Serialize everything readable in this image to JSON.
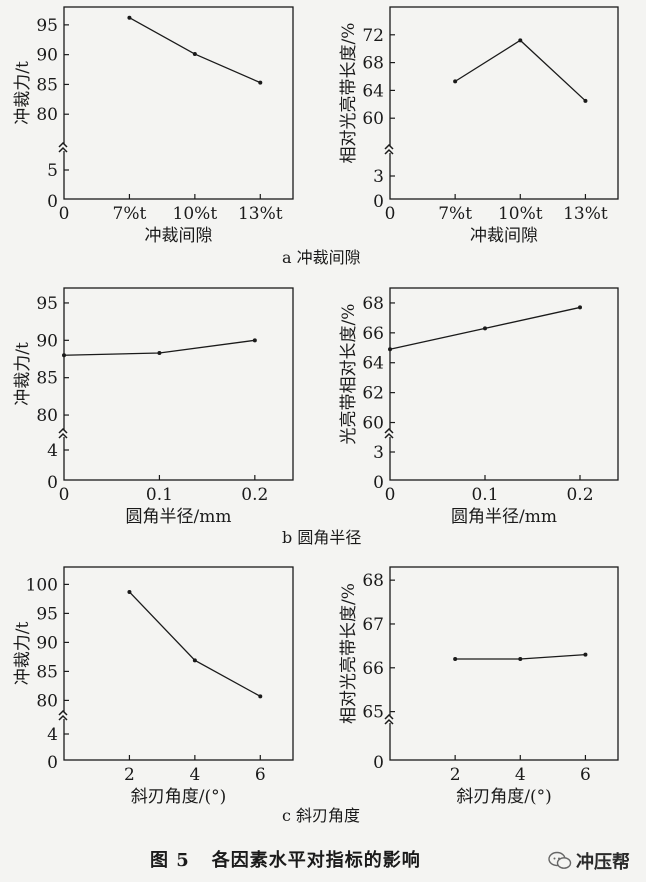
{
  "chart_data": [
    {
      "id": "a-force",
      "type": "line",
      "xlabel": "冲裁间隙",
      "ylabel": "冲裁力/t",
      "x_origin": "0",
      "xticks": [
        "7%t",
        "10%t",
        "13%t"
      ],
      "x": [
        1,
        2,
        3
      ],
      "xlim": [
        0,
        3.5
      ],
      "ylim": [
        75,
        98
      ],
      "yticks_upper": [
        80,
        85,
        90,
        95
      ],
      "yticks_lower": [
        5
      ],
      "y_origin": "0",
      "axis_break": true,
      "series": [
        {
          "values": [
            96.2,
            90.1,
            85.3
          ]
        }
      ]
    },
    {
      "id": "a-length",
      "type": "line",
      "xlabel": "冲裁间隙",
      "ylabel": "相对光亮带长度/%",
      "x_origin": "0",
      "xticks": [
        "7%t",
        "10%t",
        "13%t"
      ],
      "x": [
        1,
        2,
        3
      ],
      "xlim": [
        0,
        3.5
      ],
      "ylim": [
        56,
        76
      ],
      "yticks_upper": [
        60,
        64,
        68,
        72
      ],
      "yticks_lower": [
        3
      ],
      "y_origin": "0",
      "axis_break": true,
      "series": [
        {
          "values": [
            65.3,
            71.2,
            62.5
          ]
        }
      ]
    },
    {
      "id": "b-force",
      "type": "line",
      "xlabel": "圆角半径/mm",
      "ylabel": "冲裁力/t",
      "x_origin": "0",
      "xticks": [
        "0.1",
        "0.2"
      ],
      "x": [
        0,
        0.1,
        0.2
      ],
      "xlim": [
        0,
        0.24
      ],
      "ylim": [
        78,
        97
      ],
      "yticks_upper": [
        80,
        85,
        90,
        95
      ],
      "yticks_lower": [
        4
      ],
      "y_origin": "0",
      "axis_break": true,
      "series": [
        {
          "values": [
            88.0,
            88.3,
            90.0
          ]
        }
      ]
    },
    {
      "id": "b-length",
      "type": "line",
      "xlabel": "圆角半径/mm",
      "ylabel": "光亮带相对长度/%",
      "x_origin": "0",
      "xticks": [
        "0.1",
        "0.2"
      ],
      "x": [
        0,
        0.1,
        0.2
      ],
      "xlim": [
        0,
        0.24
      ],
      "ylim": [
        59.5,
        69
      ],
      "yticks_upper": [
        60,
        62,
        64,
        66,
        68
      ],
      "yticks_lower": [
        3
      ],
      "y_origin": "0",
      "axis_break": true,
      "series": [
        {
          "values": [
            64.9,
            66.3,
            67.7
          ]
        }
      ]
    },
    {
      "id": "c-force",
      "type": "line",
      "xlabel": "斜刃角度/(°)",
      "ylabel": "冲裁力/t",
      "x_origin": "",
      "xticks": [
        "2",
        "4",
        "6"
      ],
      "x": [
        2,
        4,
        6
      ],
      "xlim": [
        0,
        7
      ],
      "ylim": [
        78,
        103
      ],
      "yticks_upper": [
        80,
        85,
        90,
        95,
        100
      ],
      "yticks_lower": [
        4
      ],
      "y_origin": "0",
      "axis_break": true,
      "series": [
        {
          "values": [
            98.7,
            86.9,
            80.7
          ]
        }
      ]
    },
    {
      "id": "c-length",
      "type": "line",
      "xlabel": "斜刃角度/(°)",
      "ylabel": "相对光亮带长度/%",
      "x_origin": "",
      "xticks": [
        "2",
        "4",
        "6"
      ],
      "x": [
        2,
        4,
        6
      ],
      "xlim": [
        0,
        7
      ],
      "ylim": [
        64.9,
        68.3
      ],
      "yticks_upper": [
        65,
        66,
        67,
        68
      ],
      "yticks_lower": [],
      "y_origin": "0",
      "axis_break": true,
      "series": [
        {
          "values": [
            66.2,
            66.2,
            66.3
          ]
        }
      ]
    }
  ],
  "subcaptions": {
    "a": "a  冲裁间隙",
    "b": "b  圆角半径",
    "c": "c  斜刃角度"
  },
  "figure_caption": {
    "number": "图 5",
    "text": "各因素水平对指标的影响"
  },
  "watermark": {
    "text": "冲压帮",
    "icon": "chat-bubble-icon"
  }
}
